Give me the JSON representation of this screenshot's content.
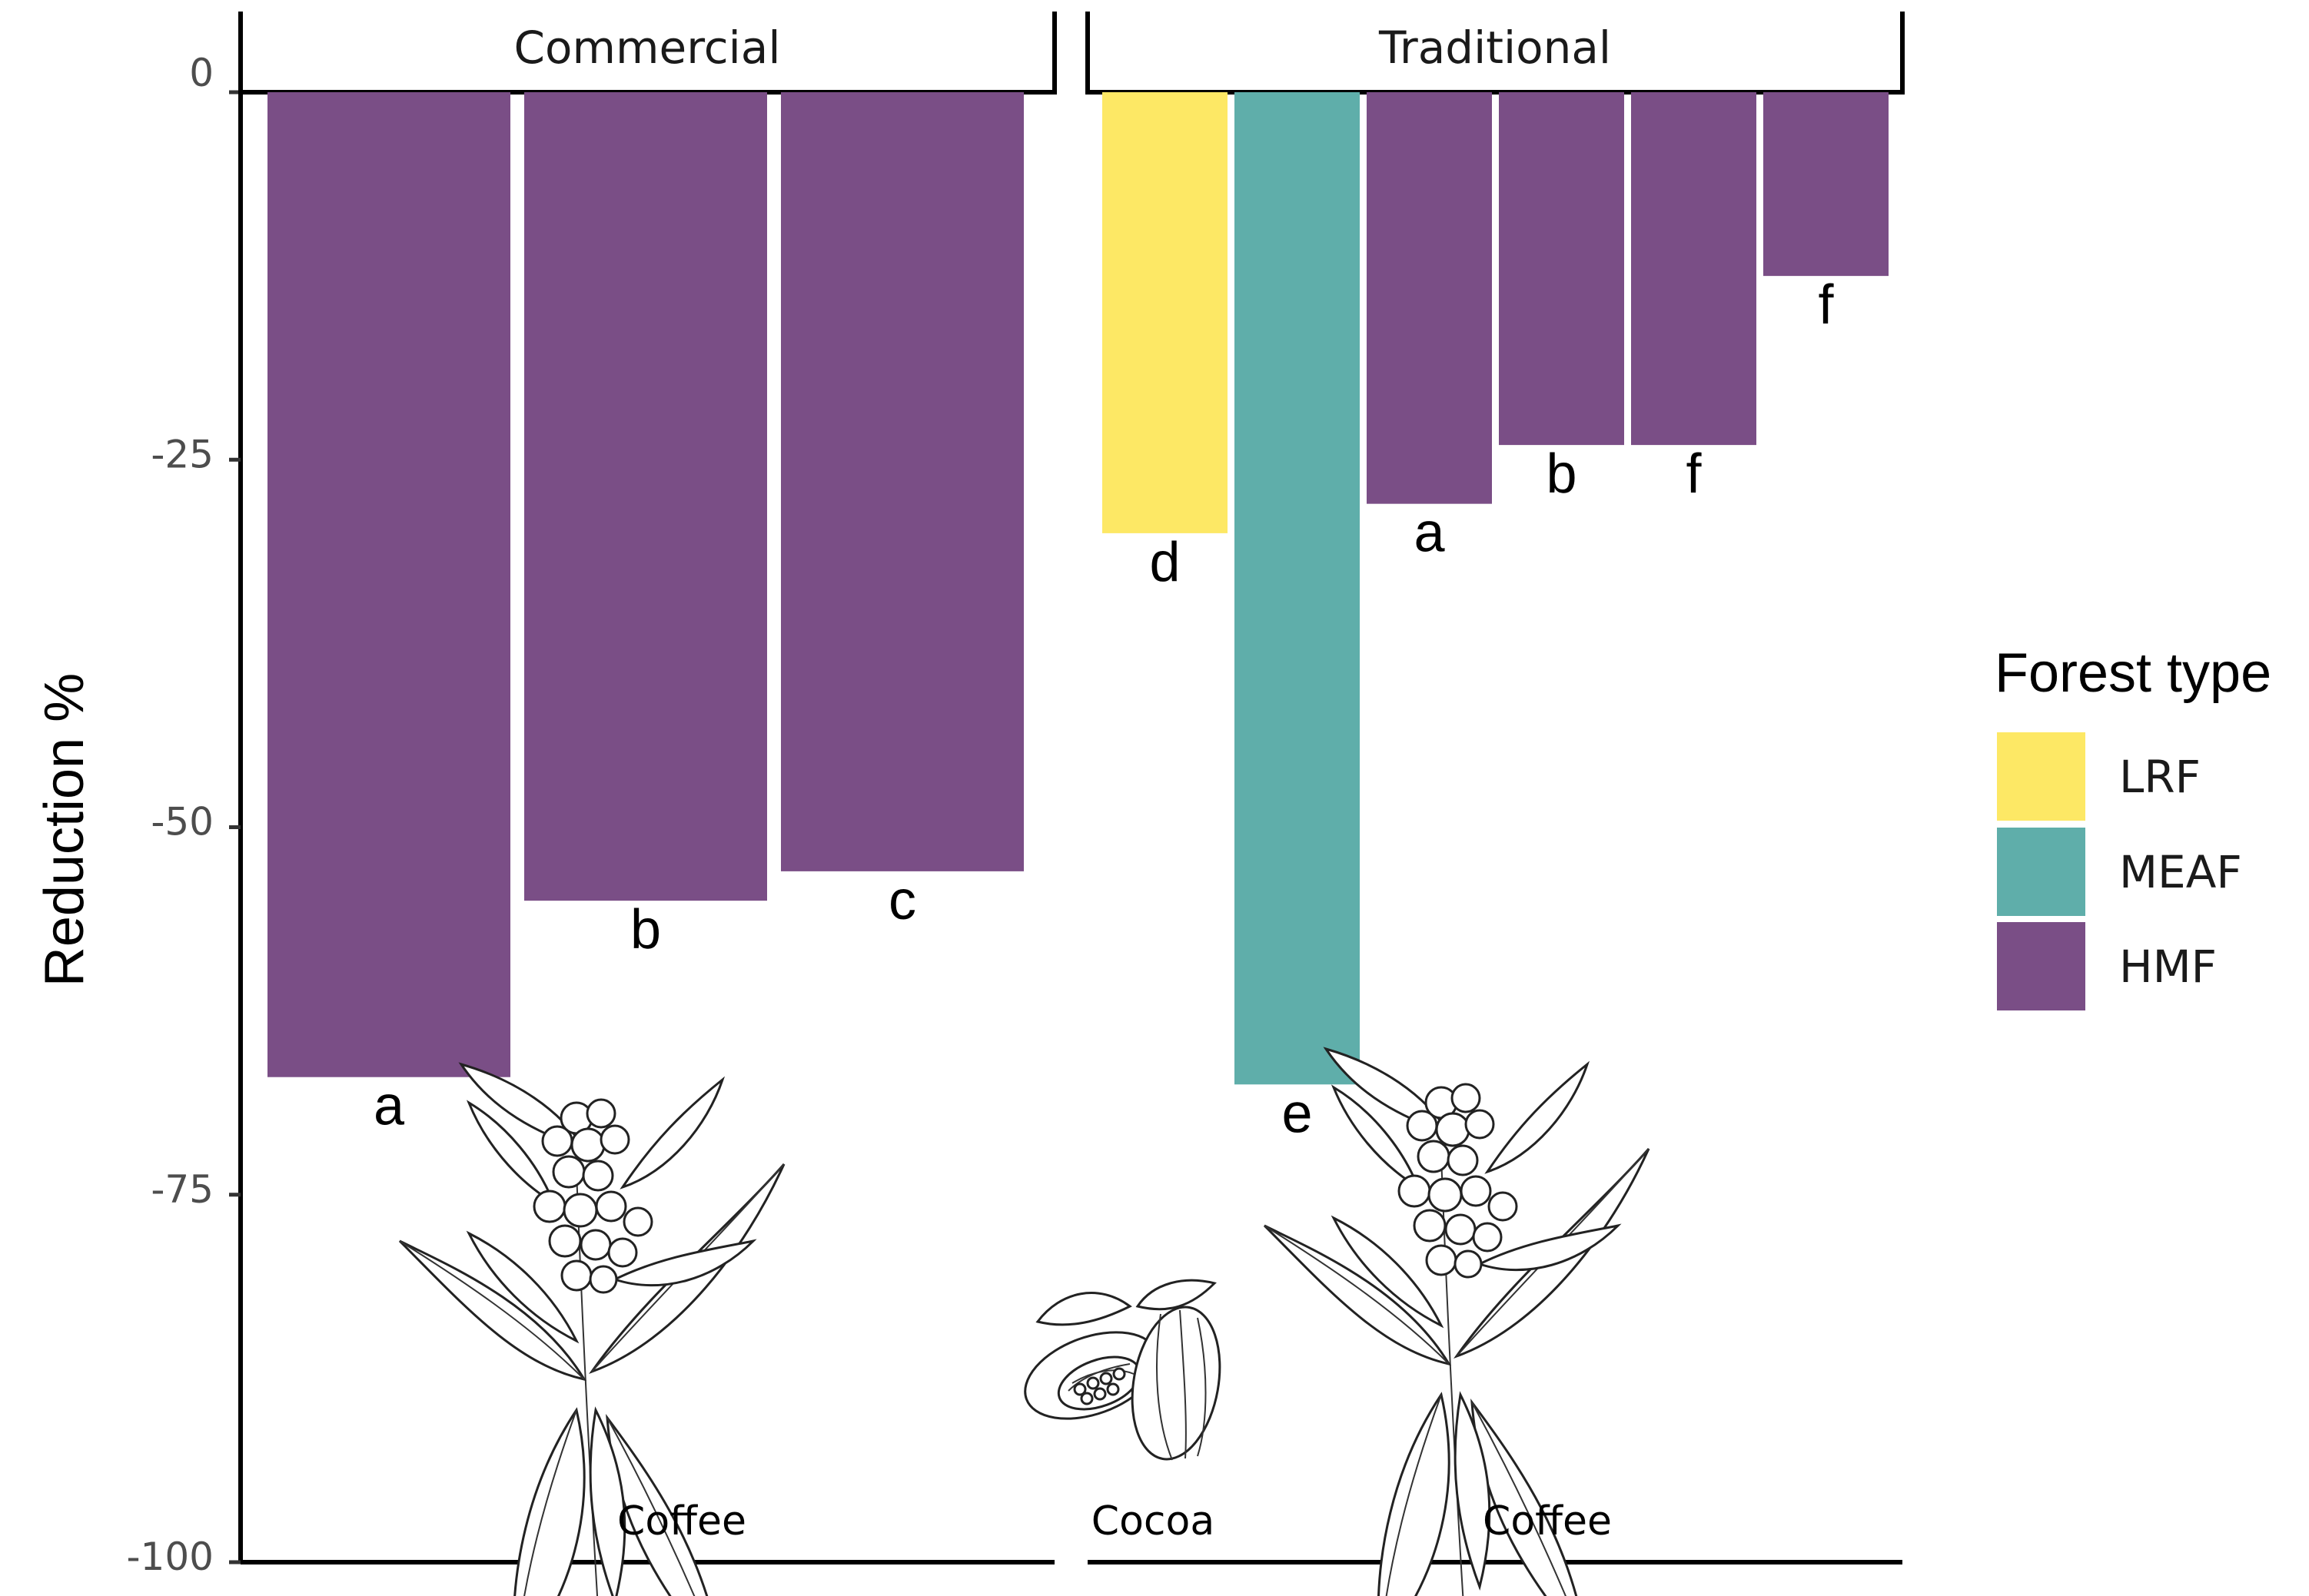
{
  "chart_data": {
    "type": "bar",
    "ylabel": "Reduction %",
    "ylim": [
      -100,
      0
    ],
    "yticks": [
      0,
      -25,
      -50,
      -75,
      -100
    ],
    "grid": false,
    "legend": {
      "title": "Forest type",
      "position": "right",
      "entries": [
        {
          "label": "LRF",
          "color": "#FDE865"
        },
        {
          "label": "MEAF",
          "color": "#5FAEAA"
        },
        {
          "label": "HMF",
          "color": "#7A4E86"
        }
      ]
    },
    "panels": [
      {
        "strip": "Commercial",
        "crops": [
          "Coffee"
        ],
        "bars": [
          {
            "label": "a",
            "value": -67,
            "forest": "HMF"
          },
          {
            "label": "b",
            "value": -55,
            "forest": "HMF"
          },
          {
            "label": "c",
            "value": -53,
            "forest": "HMF"
          }
        ]
      },
      {
        "strip": "Traditional",
        "crops": [
          "Cocoa",
          "Coffee"
        ],
        "bars": [
          {
            "label": "d",
            "value": -30,
            "forest": "LRF"
          },
          {
            "label": "e",
            "value": -67.5,
            "forest": "MEAF"
          },
          {
            "label": "a",
            "value": -28,
            "forest": "HMF"
          },
          {
            "label": "b",
            "value": -24,
            "forest": "HMF"
          },
          {
            "label": "f",
            "value": -24,
            "forest": "HMF"
          },
          {
            "label": "f",
            "value": -12.5,
            "forest": "HMF"
          }
        ]
      }
    ]
  }
}
